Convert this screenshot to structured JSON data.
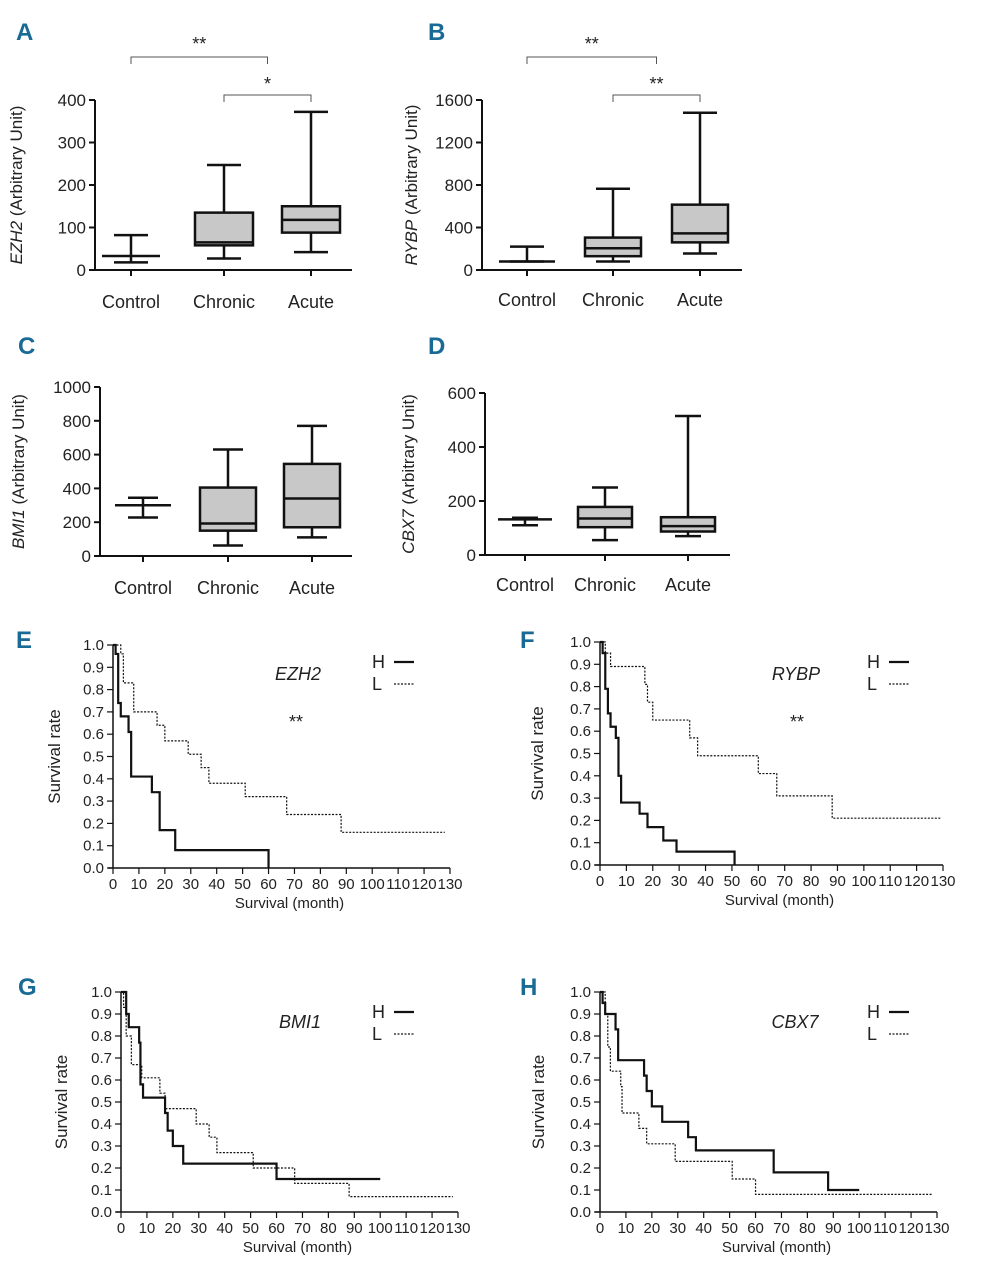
{
  "figure": {
    "label_color": "#1a6a96",
    "box_fill": "#c8c8c8",
    "line_color": "#111111"
  },
  "chart_data": [
    {
      "panel": "A",
      "type": "box",
      "gene": "EZH2",
      "ylabel_suffix": " (Arbitrary Unit)",
      "categories": [
        "Control",
        "Chronic",
        "Acute"
      ],
      "ylim": [
        0,
        400
      ],
      "yticks": [
        0,
        100,
        200,
        300,
        400
      ],
      "boxes": [
        {
          "min": 18,
          "q1": 33,
          "median": 33,
          "q3": 33,
          "max": 82
        },
        {
          "min": 27,
          "q1": 58,
          "median": 65,
          "q3": 135,
          "max": 247
        },
        {
          "min": 42,
          "q1": 88,
          "median": 118,
          "q3": 150,
          "max": 372
        }
      ],
      "significance": [
        {
          "from": 0,
          "to": 1.5,
          "label": "**",
          "level": 2
        },
        {
          "from": 1,
          "to": 2,
          "label": "*",
          "level": 1
        }
      ]
    },
    {
      "panel": "B",
      "type": "box",
      "gene": "RYBP",
      "ylabel_suffix": " (Arbitrary Unit)",
      "categories": [
        "Control",
        "Chronic",
        "Acute"
      ],
      "ylim": [
        0,
        1600
      ],
      "yticks": [
        0,
        400,
        800,
        1200,
        1600
      ],
      "boxes": [
        {
          "min": 80,
          "q1": 80,
          "median": 80,
          "q3": 80,
          "max": 220
        },
        {
          "min": 80,
          "q1": 130,
          "median": 205,
          "q3": 305,
          "max": 765
        },
        {
          "min": 155,
          "q1": 260,
          "median": 345,
          "q3": 615,
          "max": 1480
        }
      ],
      "significance": [
        {
          "from": 0,
          "to": 1.5,
          "label": "**",
          "level": 2
        },
        {
          "from": 1,
          "to": 2,
          "label": "**",
          "level": 1
        }
      ]
    },
    {
      "panel": "C",
      "type": "box",
      "gene": "BMI1",
      "ylabel_suffix": " (Arbitrary Unit)",
      "categories": [
        "Control",
        "Chronic",
        "Acute"
      ],
      "ylim": [
        0,
        1000
      ],
      "yticks": [
        0,
        200,
        400,
        600,
        800,
        1000
      ],
      "boxes": [
        {
          "min": 228,
          "q1": 300,
          "median": 300,
          "q3": 300,
          "max": 345
        },
        {
          "min": 62,
          "q1": 150,
          "median": 192,
          "q3": 405,
          "max": 630
        },
        {
          "min": 110,
          "q1": 170,
          "median": 340,
          "q3": 545,
          "max": 770
        }
      ],
      "significance": []
    },
    {
      "panel": "D",
      "type": "box",
      "gene": "CBX7",
      "ylabel_suffix": " (Arbitrary Unit)",
      "categories": [
        "Control",
        "Chronic",
        "Acute"
      ],
      "ylim": [
        0,
        600
      ],
      "yticks": [
        0,
        200,
        400,
        600
      ],
      "boxes": [
        {
          "min": 110,
          "q1": 132,
          "median": 132,
          "q3": 132,
          "max": 138
        },
        {
          "min": 55,
          "q1": 103,
          "median": 135,
          "q3": 178,
          "max": 250
        },
        {
          "min": 70,
          "q1": 87,
          "median": 107,
          "q3": 140,
          "max": 515
        }
      ],
      "significance": []
    },
    {
      "panel": "E",
      "type": "line",
      "subtype": "kaplan-meier",
      "gene": "EZH2",
      "significance": "**",
      "xlabel": "Survival (month)",
      "ylabel": "Survival rate",
      "xlim": [
        0,
        130
      ],
      "ylim": [
        0,
        1.0
      ],
      "xticks": [
        0,
        10,
        20,
        30,
        40,
        50,
        60,
        70,
        80,
        90,
        100,
        110,
        120,
        130
      ],
      "yticks": [
        "0.0",
        "0.1",
        "0.2",
        "0.3",
        "0.4",
        "0.5",
        "0.6",
        "0.7",
        "0.8",
        "0.9",
        "1.0"
      ],
      "legend": "top-right",
      "series": [
        {
          "name": "H",
          "style": "solid",
          "steps": [
            [
              0,
              1.0
            ],
            [
              1,
              0.96
            ],
            [
              2,
              0.74
            ],
            [
              3,
              0.68
            ],
            [
              6,
              0.61
            ],
            [
              7,
              0.41
            ],
            [
              15,
              0.34
            ],
            [
              18,
              0.17
            ],
            [
              24,
              0.08
            ],
            [
              60,
              0.0
            ]
          ],
          "end": 60
        },
        {
          "name": "L",
          "style": "dotted",
          "steps": [
            [
              0,
              1.0
            ],
            [
              3,
              0.96
            ],
            [
              4,
              0.83
            ],
            [
              8,
              0.7
            ],
            [
              17,
              0.64
            ],
            [
              20,
              0.57
            ],
            [
              29,
              0.51
            ],
            [
              34,
              0.45
            ],
            [
              37,
              0.38
            ],
            [
              51,
              0.32
            ],
            [
              67,
              0.24
            ],
            [
              88,
              0.16
            ]
          ],
          "end": 128
        }
      ]
    },
    {
      "panel": "F",
      "type": "line",
      "subtype": "kaplan-meier",
      "gene": "RYBP",
      "significance": "**",
      "xlabel": "Survival (month)",
      "ylabel": "Survival rate",
      "xlim": [
        0,
        130
      ],
      "ylim": [
        0,
        1.0
      ],
      "xticks": [
        0,
        10,
        20,
        30,
        40,
        50,
        60,
        70,
        80,
        90,
        100,
        110,
        120,
        130
      ],
      "yticks": [
        "0.0",
        "0.1",
        "0.2",
        "0.3",
        "0.4",
        "0.5",
        "0.6",
        "0.7",
        "0.8",
        "0.9",
        "1.0"
      ],
      "legend": "top-right",
      "series": [
        {
          "name": "H",
          "style": "solid",
          "steps": [
            [
              0,
              1.0
            ],
            [
              1,
              0.95
            ],
            [
              2,
              0.79
            ],
            [
              3,
              0.68
            ],
            [
              4,
              0.62
            ],
            [
              6,
              0.57
            ],
            [
              7,
              0.4
            ],
            [
              8,
              0.28
            ],
            [
              15,
              0.23
            ],
            [
              18,
              0.17
            ],
            [
              24,
              0.11
            ],
            [
              29,
              0.06
            ],
            [
              51,
              0.0
            ]
          ],
          "end": 51
        },
        {
          "name": "L",
          "style": "dotted",
          "steps": [
            [
              0,
              1.0
            ],
            [
              2,
              0.95
            ],
            [
              4,
              0.89
            ],
            [
              17,
              0.81
            ],
            [
              18,
              0.73
            ],
            [
              20,
              0.65
            ],
            [
              34,
              0.57
            ],
            [
              37,
              0.49
            ],
            [
              60,
              0.41
            ],
            [
              67,
              0.31
            ],
            [
              88,
              0.21
            ]
          ],
          "end": 129
        }
      ]
    },
    {
      "panel": "G",
      "type": "line",
      "subtype": "kaplan-meier",
      "gene": "BMI1",
      "significance": "",
      "xlabel": "Survival (month)",
      "ylabel": "Survival rate",
      "xlim": [
        0,
        130
      ],
      "ylim": [
        0,
        1.0
      ],
      "xticks": [
        0,
        10,
        20,
        30,
        40,
        50,
        60,
        70,
        80,
        90,
        100,
        110,
        120,
        130
      ],
      "yticks": [
        "0.0",
        "0.1",
        "0.2",
        "0.3",
        "0.4",
        "0.5",
        "0.6",
        "0.7",
        "0.8",
        "0.9",
        "1.0"
      ],
      "legend": "top-right",
      "series": [
        {
          "name": "H",
          "style": "solid",
          "steps": [
            [
              0,
              1.0
            ],
            [
              2,
              0.9
            ],
            [
              3,
              0.84
            ],
            [
              7,
              0.77
            ],
            [
              7.5,
              0.58
            ],
            [
              8.5,
              0.52
            ],
            [
              17,
              0.45
            ],
            [
              18,
              0.37
            ],
            [
              20,
              0.3
            ],
            [
              24,
              0.22
            ],
            [
              60,
              0.15
            ]
          ],
          "end": 100
        },
        {
          "name": "L",
          "style": "dotted",
          "steps": [
            [
              0,
              1.0
            ],
            [
              1,
              0.93
            ],
            [
              2,
              0.8
            ],
            [
              4,
              0.67
            ],
            [
              8,
              0.61
            ],
            [
              15,
              0.54
            ],
            [
              17,
              0.47
            ],
            [
              29,
              0.4
            ],
            [
              34,
              0.34
            ],
            [
              37,
              0.27
            ],
            [
              51,
              0.2
            ],
            [
              67,
              0.13
            ],
            [
              88,
              0.07
            ]
          ],
          "end": 128
        }
      ]
    },
    {
      "panel": "H",
      "type": "line",
      "subtype": "kaplan-meier",
      "gene": "CBX7",
      "significance": "",
      "xlabel": "Survival (month)",
      "ylabel": "Survival rate",
      "xlim": [
        0,
        130
      ],
      "ylim": [
        0,
        1.0
      ],
      "xticks": [
        0,
        10,
        20,
        30,
        40,
        50,
        60,
        70,
        80,
        90,
        100,
        110,
        120,
        130
      ],
      "yticks": [
        "0.0",
        "0.1",
        "0.2",
        "0.3",
        "0.4",
        "0.5",
        "0.6",
        "0.7",
        "0.8",
        "0.9",
        "1.0"
      ],
      "legend": "top-right",
      "series": [
        {
          "name": "H",
          "style": "solid",
          "steps": [
            [
              0,
              1.0
            ],
            [
              1,
              0.95
            ],
            [
              2,
              0.9
            ],
            [
              6,
              0.83
            ],
            [
              7,
              0.69
            ],
            [
              17,
              0.62
            ],
            [
              18,
              0.55
            ],
            [
              20,
              0.48
            ],
            [
              24,
              0.41
            ],
            [
              34,
              0.34
            ],
            [
              37,
              0.28
            ],
            [
              67,
              0.18
            ],
            [
              88,
              0.1
            ]
          ],
          "end": 100
        },
        {
          "name": "L",
          "style": "dotted",
          "steps": [
            [
              0,
              1.0
            ],
            [
              2,
              0.9
            ],
            [
              3,
              0.75
            ],
            [
              4,
              0.64
            ],
            [
              8,
              0.57
            ],
            [
              8.5,
              0.45
            ],
            [
              15,
              0.38
            ],
            [
              18,
              0.31
            ],
            [
              29,
              0.23
            ],
            [
              51,
              0.15
            ],
            [
              60,
              0.08
            ]
          ],
          "end": 128
        }
      ]
    }
  ]
}
